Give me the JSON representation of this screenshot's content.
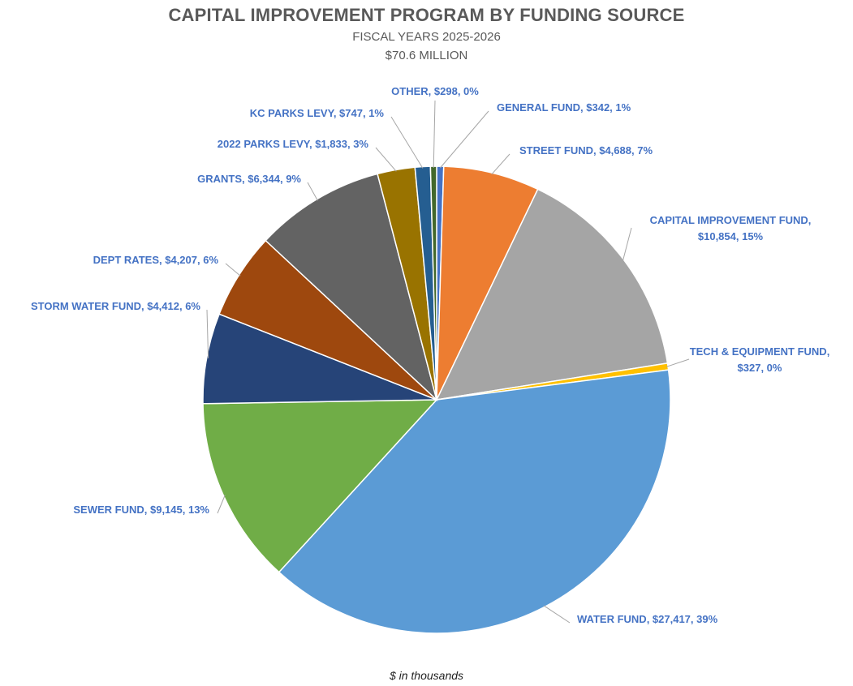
{
  "chart_data": {
    "type": "pie",
    "title": "CAPITAL IMPROVEMENT PROGRAM BY FUNDING SOURCE",
    "subtitle": [
      "FISCAL YEARS 2025-2026",
      "$70.6 MILLION"
    ],
    "footnote": "$ in thousands",
    "categories": [
      "GENERAL FUND",
      "STREET FUND",
      "CAPITAL IMPROVEMENT FUND",
      "TECH & EQUIPMENT FUND",
      "WATER FUND",
      "SEWER FUND",
      "STORM WATER FUND",
      "DEPT RATES",
      "GRANTS",
      "2022 PARKS LEVY",
      "KC PARKS LEVY",
      "OTHER"
    ],
    "values": [
      342,
      4688,
      10854,
      327,
      27417,
      9145,
      4412,
      4207,
      6344,
      1833,
      747,
      298
    ],
    "colors": [
      "#4472C4",
      "#ED7D31",
      "#A5A5A5",
      "#FFC000",
      "#5B9BD5",
      "#70AD47",
      "#264478",
      "#9E480E",
      "#636363",
      "#997300",
      "#255E91",
      "#43682B"
    ],
    "labels": [
      [
        "GENERAL FUND, $342, 1%"
      ],
      [
        "STREET FUND, $4,688, 7%"
      ],
      [
        "CAPITAL IMPROVEMENT FUND,",
        "$10,854, 15%"
      ],
      [
        "TECH & EQUIPMENT FUND,",
        "$327, 0%"
      ],
      [
        "WATER FUND, $27,417, 39%"
      ],
      [
        "SEWER FUND, $9,145, 13%"
      ],
      [
        "STORM WATER FUND, $4,412, 6%"
      ],
      [
        "DEPT RATES, $4,207, 6%"
      ],
      [
        "GRANTS, $6,344, 9%"
      ],
      [
        "2022 PARKS LEVY, $1,833, 3%"
      ],
      [
        "KC PARKS LEVY, $747, 1%"
      ],
      [
        "OTHER, $298, 0%"
      ]
    ],
    "legend": "none"
  }
}
